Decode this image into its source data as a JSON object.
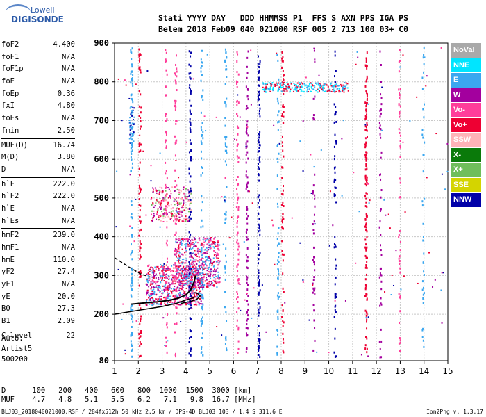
{
  "logo": {
    "line1": "Lowell",
    "line2": "DIGISONDE"
  },
  "header": {
    "labels": "Stati YYYY DAY   DDD HHMMSS P1  FFS S AXN PPS IGA PS",
    "values": "Belem 2018 Feb09 040 021000 RSF 005 2 713 100 03+ C0"
  },
  "params": [
    {
      "name": "foF2",
      "value": "4.400"
    },
    {
      "name": "foF1",
      "value": "N/A"
    },
    {
      "name": "foF1p",
      "value": "N/A"
    },
    {
      "name": "foE",
      "value": "N/A"
    },
    {
      "name": "foEp",
      "value": "0.36"
    },
    {
      "name": "fxI",
      "value": "4.80"
    },
    {
      "name": "foEs",
      "value": "N/A"
    },
    {
      "name": "fmin",
      "value": "2.50"
    },
    {
      "sep": true
    },
    {
      "name": "MUF(D)",
      "value": "16.74"
    },
    {
      "name": "M(D)",
      "value": "3.80"
    },
    {
      "name": "D",
      "value": "N/A"
    },
    {
      "sep": true
    },
    {
      "name": "h`F",
      "value": "222.0"
    },
    {
      "name": "h`F2",
      "value": "222.0"
    },
    {
      "name": "h`E",
      "value": "N/A"
    },
    {
      "name": "h`Es",
      "value": "N/A"
    },
    {
      "sep": true
    },
    {
      "name": "hmF2",
      "value": "239.0"
    },
    {
      "name": "hmF1",
      "value": "N/A"
    },
    {
      "name": "hmE",
      "value": "110.0"
    },
    {
      "name": "yF2",
      "value": "27.4"
    },
    {
      "name": "yF1",
      "value": "N/A"
    },
    {
      "name": "yE",
      "value": "20.0"
    },
    {
      "name": "B0",
      "value": "27.3"
    },
    {
      "name": "B1",
      "value": "2.09"
    },
    {
      "sep": true
    },
    {
      "name": "C-level",
      "value": "22"
    }
  ],
  "auto": {
    "line1": "Auto:",
    "line2": "Artist5",
    "line3": "500200"
  },
  "legend": [
    {
      "label": "NoVal",
      "color": "#a9a9a9"
    },
    {
      "label": "NNE",
      "color": "#00e5ff"
    },
    {
      "label": "E",
      "color": "#3aa7f0"
    },
    {
      "label": "W",
      "color": "#a3009e"
    },
    {
      "label": "Vo-",
      "color": "#ff3d9a"
    },
    {
      "label": "Vo+",
      "color": "#ee0033"
    },
    {
      "label": "SSW",
      "color": "#ffb3b8"
    },
    {
      "label": "X-",
      "color": "#0a7a0a"
    },
    {
      "label": "X+",
      "color": "#6fbe5b"
    },
    {
      "label": "SSE",
      "color": "#d4d400"
    },
    {
      "label": "NNW",
      "color": "#0000a8"
    }
  ],
  "muf_table": {
    "d_row": "D      100   200   400   600   800  1000  1500  3000 [km]",
    "muf_row": "MUF    4.7   4.8   5.1   5.5   6.2   7.1   9.8  16.7 [MHz]"
  },
  "footer": {
    "left": "BLJ03_2018040021000.RSF / 284fx512h 50 kHz 2.5 km / DPS-4D BLJ03 103 / 1.4 S 311.6 E",
    "right": "Ion2Png v. 1.3.17"
  },
  "chart_data": {
    "type": "scatter",
    "xlim": [
      1,
      15
    ],
    "ylim": [
      80,
      900
    ],
    "xticks": [
      1,
      2,
      3,
      4,
      5,
      6,
      7,
      8,
      9,
      10,
      11,
      12,
      13,
      14,
      15
    ],
    "yticks": [
      80,
      200,
      300,
      400,
      500,
      600,
      700,
      800,
      900
    ],
    "grid": true,
    "legend_placement": "right",
    "traces": [
      {
        "name": "F2 trace (o)",
        "points": [
          [
            1.7,
            226
          ],
          [
            2.2,
            229
          ],
          [
            2.8,
            232
          ],
          [
            3.3,
            236
          ],
          [
            3.7,
            242
          ],
          [
            4.0,
            250
          ],
          [
            4.2,
            263
          ],
          [
            4.35,
            285
          ],
          [
            4.4,
            300
          ]
        ]
      },
      {
        "name": "profile",
        "points": [
          [
            1.0,
            200
          ],
          [
            2.0,
            210
          ],
          [
            3.0,
            220
          ],
          [
            3.6,
            228
          ],
          [
            4.0,
            237
          ],
          [
            4.3,
            242
          ],
          [
            4.4,
            245
          ]
        ]
      },
      {
        "name": "x trace",
        "points": [
          [
            3.8,
            228
          ],
          [
            4.2,
            233
          ],
          [
            4.45,
            238
          ],
          [
            4.6,
            247
          ],
          [
            4.5,
            253
          ],
          [
            4.35,
            256
          ]
        ]
      },
      {
        "name": "dashed",
        "points": [
          [
            1.0,
            346
          ],
          [
            1.6,
            322
          ],
          [
            2.1,
            304
          ],
          [
            2.5,
            296
          ]
        ]
      }
    ],
    "echo_bands": [
      {
        "x": [
          2.3,
          4.7
        ],
        "y": [
          225,
          330
        ],
        "colors": [
          "#ee0033",
          "#a3009e",
          "#ff3d9a",
          "#3aa7f0"
        ],
        "density": 650
      },
      {
        "x": [
          3.5,
          5.4
        ],
        "y": [
          270,
          400
        ],
        "colors": [
          "#a3009e",
          "#ee0033",
          "#ff3d9a",
          "#3aa7f0"
        ],
        "density": 500
      },
      {
        "x": [
          2.5,
          4.2
        ],
        "y": [
          440,
          530
        ],
        "colors": [
          "#a3009e",
          "#ff3d9a",
          "#ee0033",
          "#6fbe5b",
          "#ffb3b8"
        ],
        "density": 260
      },
      {
        "x": [
          7.2,
          10.8
        ],
        "y": [
          775,
          800
        ],
        "colors": [
          "#3aa7f0",
          "#00e5ff",
          "#ee0033"
        ],
        "density": 260
      },
      {
        "x": [
          1.6,
          1.8
        ],
        "y": [
          640,
          745
        ],
        "colors": [
          "#3aa7f0",
          "#0000a8"
        ],
        "density": 40
      }
    ]
  }
}
